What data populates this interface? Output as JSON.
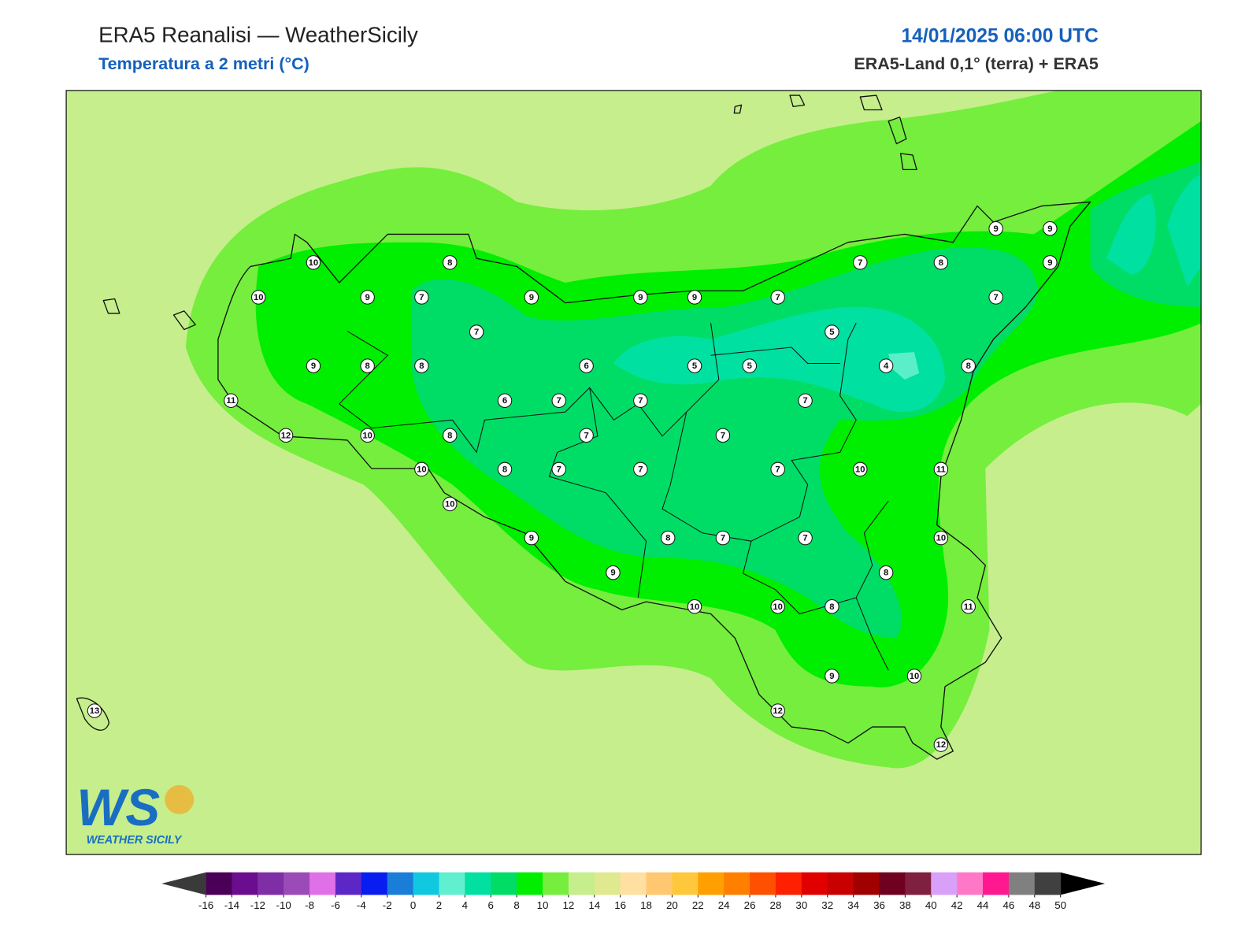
{
  "header": {
    "title": "ERA5 Reanalisi — WeatherSicily",
    "subtitle": "Temperatura a 2 metri (°C)",
    "date": "14/01/2025 06:00 UTC",
    "source": "ERA5-Land 0,1° (terra) + ERA5"
  },
  "stations": [
    10,
    8,
    10,
    9,
    7,
    9,
    9,
    9,
    7,
    7,
    8,
    9,
    9,
    9,
    7,
    7,
    5,
    9,
    8,
    8,
    6,
    5,
    5,
    4,
    8,
    11,
    6,
    7,
    7,
    7,
    12,
    10,
    8,
    7,
    7,
    10,
    8,
    7,
    7,
    7,
    10,
    11,
    10,
    9,
    8,
    7,
    7,
    10,
    9,
    8,
    10,
    10,
    8,
    11,
    9,
    10,
    12,
    12,
    13
  ],
  "colorbar": {
    "ticks": [
      -16,
      -14,
      -12,
      -10,
      -8,
      -6,
      -4,
      -2,
      0,
      2,
      4,
      6,
      8,
      10,
      12,
      14,
      16,
      18,
      20,
      22,
      24,
      26,
      28,
      30,
      32,
      34,
      36,
      38,
      40,
      42,
      44,
      46,
      48,
      50
    ],
    "colors": [
      "#4b0057",
      "#6a0e8f",
      "#7f2fa5",
      "#9a4bb8",
      "#e070e8",
      "#5d27c8",
      "#0a1df0",
      "#1a7ed8",
      "#10c8e0",
      "#60f0d0",
      "#00e0a0",
      "#00dd66",
      "#00ee00",
      "#75ee3e",
      "#c6ee8c",
      "#e0e890",
      "#ffe0a0",
      "#ffc870",
      "#ffc83c",
      "#ffa000",
      "#ff8000",
      "#ff5000",
      "#ff2000",
      "#e00000",
      "#c80000",
      "#a00000",
      "#700020",
      "#802040",
      "#d8a0f8",
      "#ff78c8",
      "#ff1890",
      "#808080",
      "#404040"
    ],
    "under_color": "#3a3a3a",
    "over_color": "#000000"
  },
  "logo": {
    "mark": "WS",
    "text": "WEATHER SICILY"
  }
}
